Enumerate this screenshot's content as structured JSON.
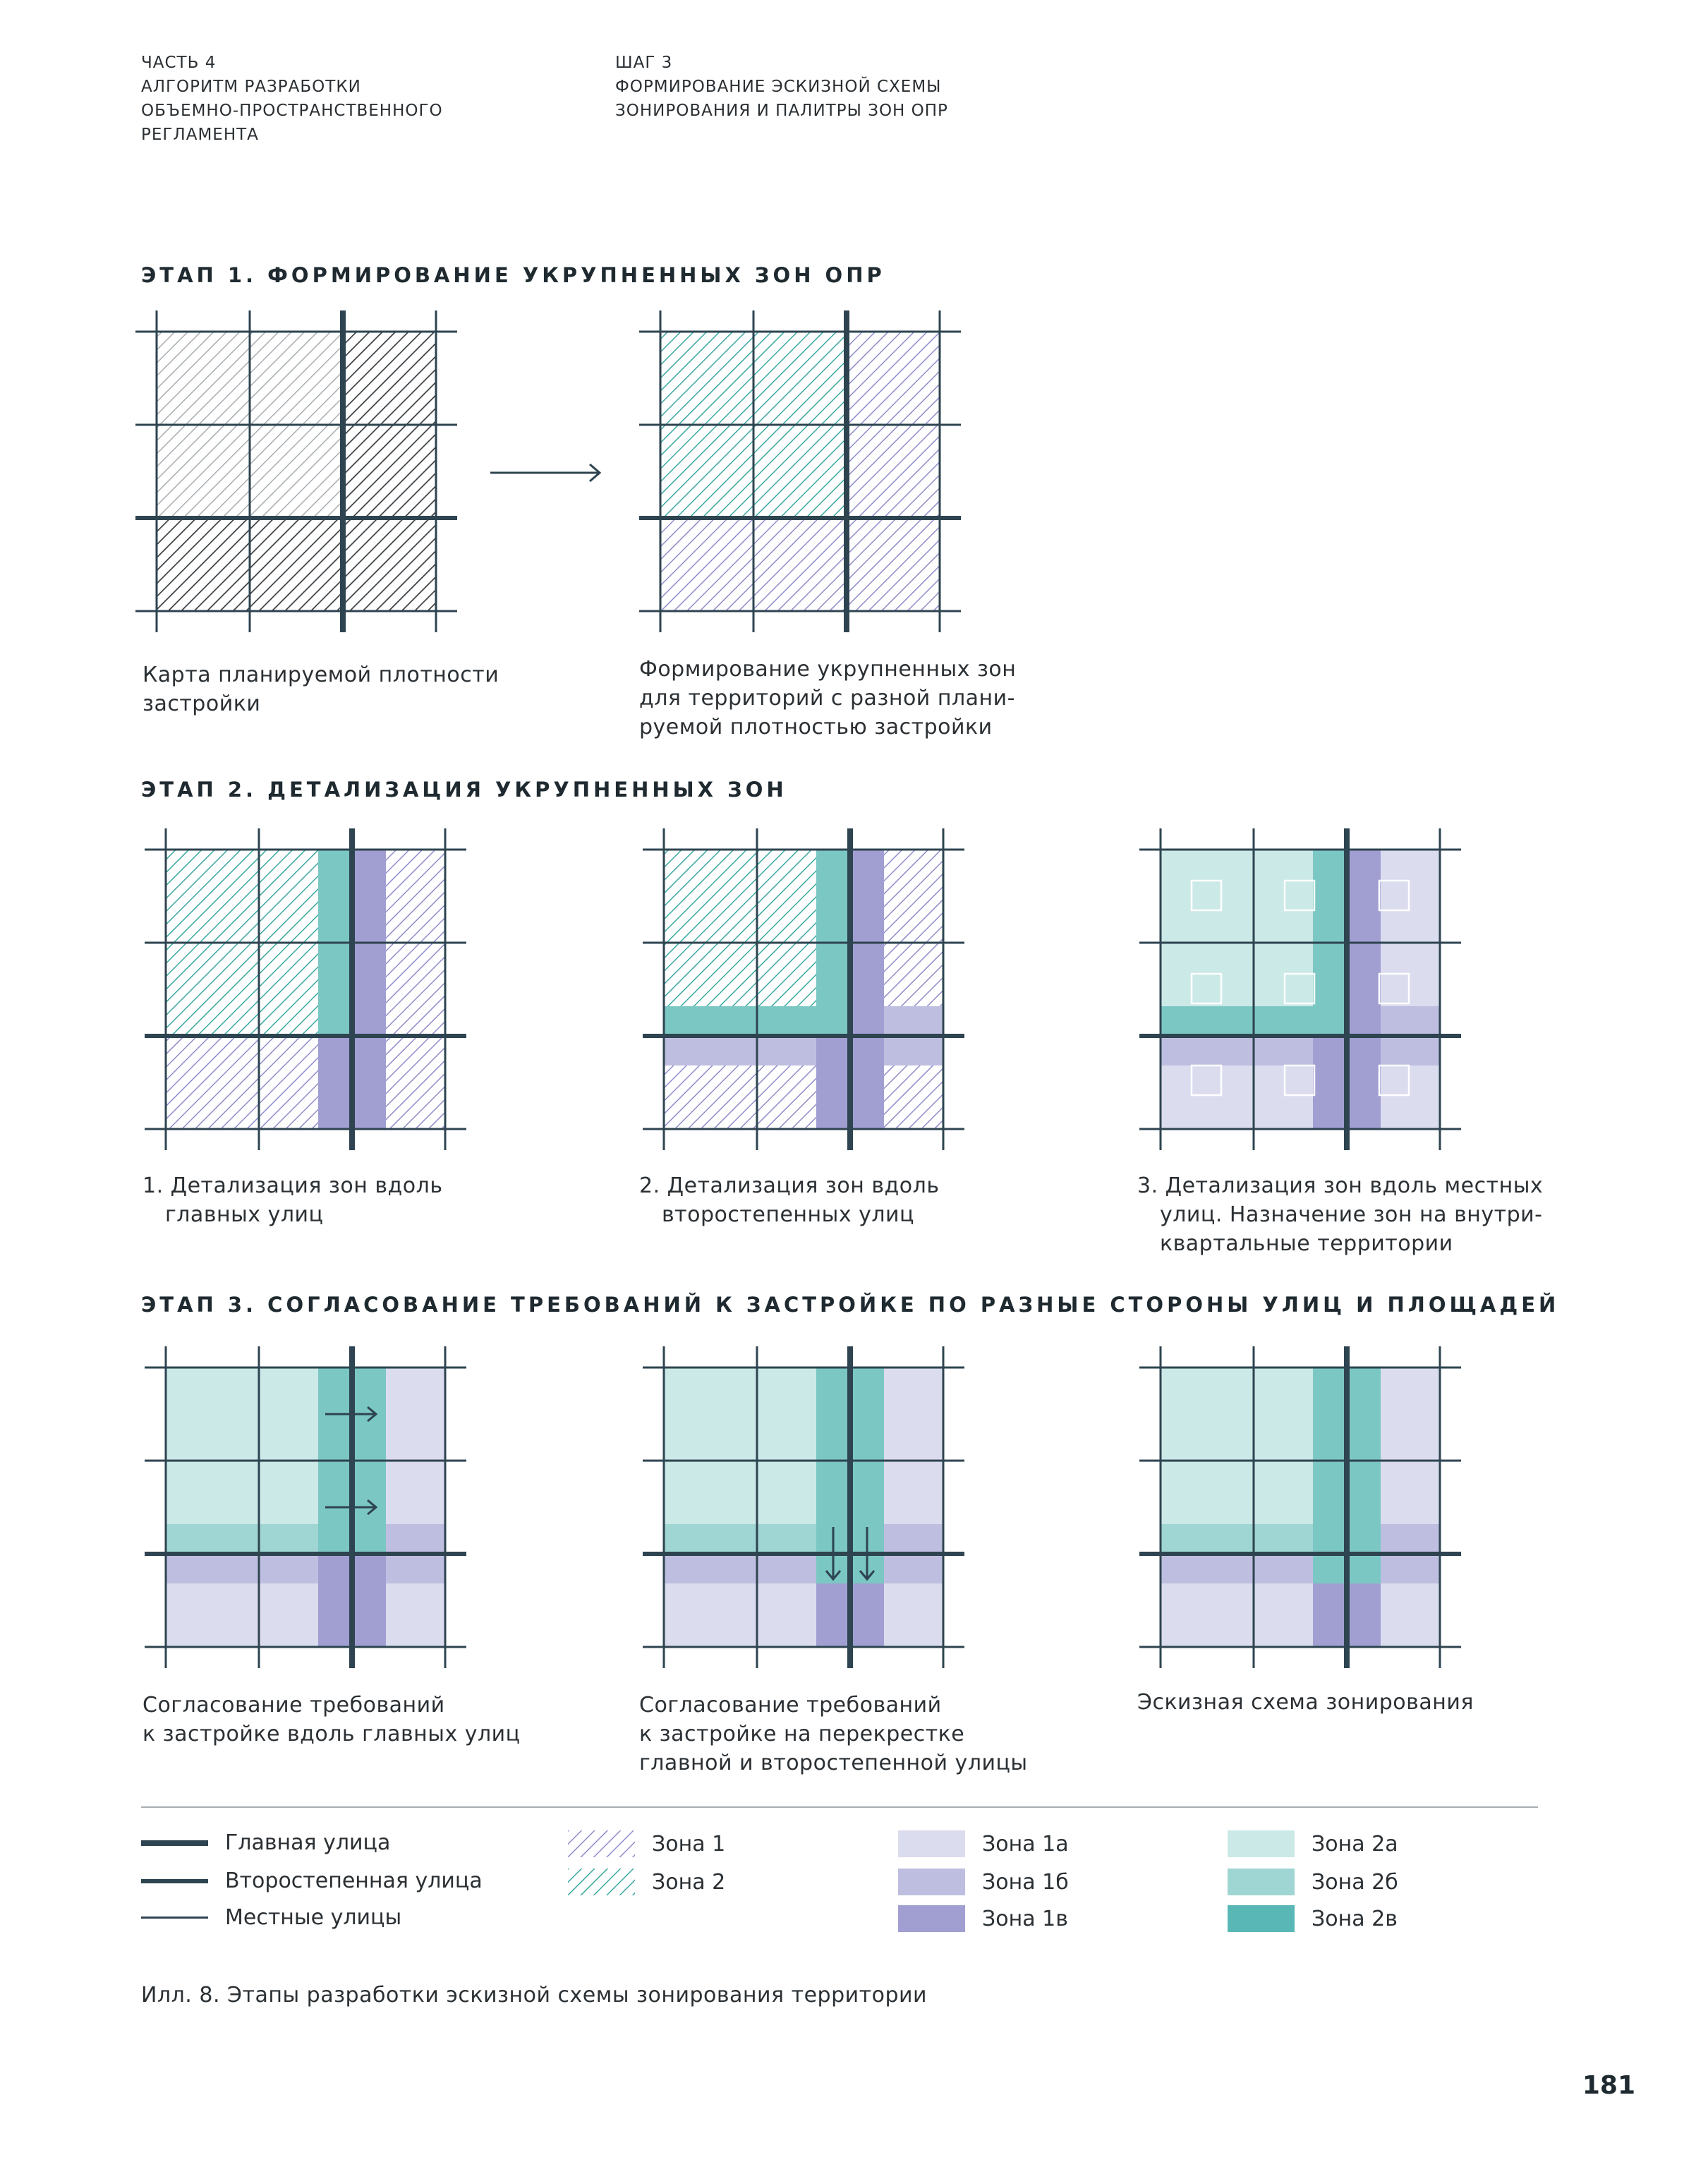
{
  "header": {
    "left": [
      "ЧАСТЬ 4",
      "АЛГОРИТМ РАЗРАБОТКИ",
      "ОБЪЕМНО-ПРОСТРАНСТВЕННОГО",
      "РЕГЛАМЕНТА"
    ],
    "right": [
      "ШАГ 3",
      "ФОРМИРОВАНИЕ ЭСКИЗНОЙ СХЕМЫ",
      "ЗОНИРОВАНИЯ И ПАЛИТРЫ ЗОН ОПР"
    ]
  },
  "colors": {
    "street": "#2e4450",
    "zone1_hatch": "#8f8ccb",
    "zone2_hatch": "#3aa89f",
    "dark_hatch": "#3b4044",
    "grey_hatch": "#9a9fa3",
    "zone1a": "#dcdcef",
    "zone1b": "#bebee0",
    "zone1v": "#a19fd2",
    "zone2a": "#cbe9e7",
    "zone2b": "#9fd5d2",
    "zone2v": "#59b8b6"
  },
  "stage1": {
    "title": "ЭТАП 1. ФОРМИРОВАНИЕ УКРУПНЕННЫХ ЗОН ОПР",
    "captions": [
      [
        "Карта планируемой плотности",
        "застройки"
      ],
      [
        "Формирование укрупненных зон",
        "для территорий с разной плани-",
        "руемой плотностью застройки"
      ]
    ]
  },
  "stage2": {
    "title": "ЭТАП 2. ДЕТАЛИЗАЦИЯ УКРУПНЕННЫХ ЗОН",
    "captions": [
      [
        "1. Детализация зон вдоль",
        "главных улиц"
      ],
      [
        "2. Детализация зон вдоль",
        "второстепенных улиц"
      ],
      [
        "3. Детализация зон вдоль местных",
        "улиц. Назначение зон на внутри-",
        "квартальные территории"
      ]
    ]
  },
  "stage3": {
    "title": "ЭТАП 3. СОГЛАСОВАНИЕ ТРЕБОВАНИЙ К ЗАСТРОЙКЕ ПО РАЗНЫЕ СТОРОНЫ УЛИЦ И ПЛОЩАДЕЙ",
    "captions": [
      [
        "Согласование требований",
        "к застройке вдоль главных улиц"
      ],
      [
        "Согласование требований",
        "к застройке на перекрестке",
        "главной и второстепенной улицы"
      ],
      [
        "Эскизная схема зонирования"
      ]
    ]
  },
  "legend": {
    "streets": [
      "Главная улица",
      "Второстепенная улица",
      "Местные улицы"
    ],
    "zones_hatch": [
      "Зона 1",
      "Зона 2"
    ],
    "zones_1": [
      "Зона 1а",
      "Зона 1б",
      "Зона 1в"
    ],
    "zones_2": [
      "Зона 2а",
      "Зона 2б",
      "Зона 2в"
    ]
  },
  "figure_caption": "Илл. 8. Этапы разработки эскизной схемы зонирования территории",
  "page_number": "181"
}
